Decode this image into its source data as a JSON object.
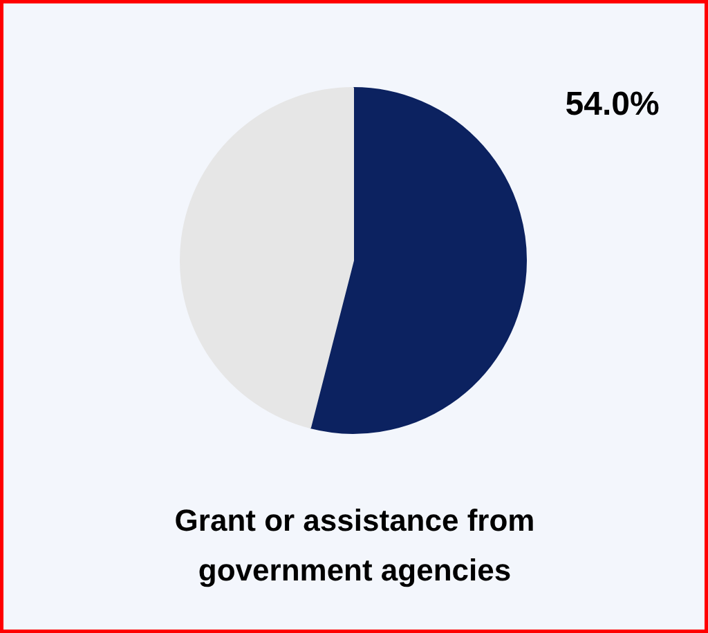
{
  "chart_data": {
    "type": "pie",
    "title": "Grant or assistance from government agencies",
    "categories": [
      null,
      null
    ],
    "values": [
      54.0,
      46.0
    ],
    "colors": [
      "#0c2260",
      "#e6e6e6"
    ],
    "value_labels": [
      "54.0%",
      null
    ]
  }
}
